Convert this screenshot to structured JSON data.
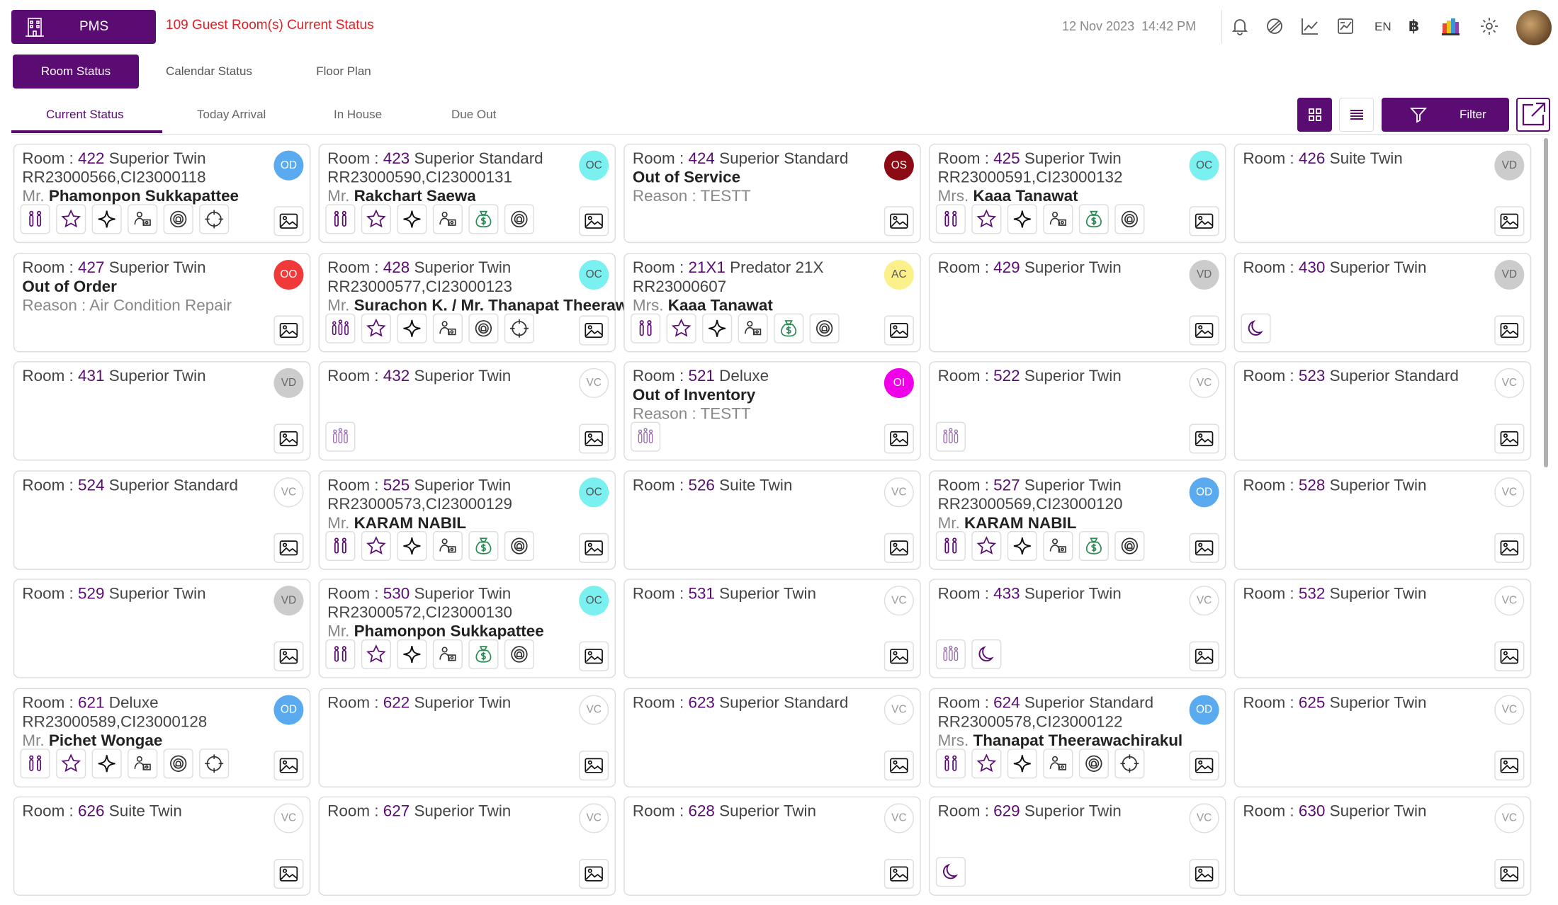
{
  "header": {
    "app_label": "PMS",
    "title": "109 Guest Room(s) Current Status",
    "date": "12 Nov 2023",
    "time": "14:42 PM",
    "language": "EN",
    "currency_symbol": "฿"
  },
  "main_tabs": [
    "Room Status",
    "Calendar Status",
    "Floor Plan"
  ],
  "sub_tabs": [
    "Current Status",
    "Today Arrival",
    "In House",
    "Due Out"
  ],
  "filter_label": "Filter",
  "colors": {
    "brand": "#5a0c72",
    "title_red": "#e31e24",
    "OD": "#5aaaf0",
    "OC": "#7af0f0",
    "OS": "#8b0a14",
    "OO": "#f03a3a",
    "AC": "#fbf08a",
    "VD": "#cccccc",
    "OI": "#f000e8",
    "VC": "#ffffff"
  },
  "rooms": [
    {
      "no": "422",
      "type": "Superior Twin",
      "status": "OD",
      "res": "RR23000566,CI23000118",
      "title": "Mr.",
      "guest": "Phamonpon Sukkapattee",
      "icons": [
        "guests",
        "star",
        "sparkle",
        "housekeeping",
        "dnd",
        "target"
      ]
    },
    {
      "no": "423",
      "type": "Superior Standard",
      "status": "OC",
      "res": "RR23000590,CI23000131",
      "title": "Mr.",
      "guest": "Rakchart Saewa",
      "icons": [
        "guests",
        "star",
        "sparkle",
        "housekeeping",
        "money",
        "dnd"
      ]
    },
    {
      "no": "424",
      "type": "Superior Standard",
      "status": "OS",
      "note": "Out of Service",
      "reason": "Reason : TESTT",
      "icons": []
    },
    {
      "no": "425",
      "type": "Superior Twin",
      "status": "OC",
      "res": "RR23000591,CI23000132",
      "title": "Mrs.",
      "guest": "Kaaa Tanawat",
      "icons": [
        "guests",
        "star",
        "sparkle",
        "housekeeping",
        "money",
        "dnd"
      ]
    },
    {
      "no": "426",
      "type": "Suite Twin",
      "status": "VD",
      "icons": []
    },
    {
      "no": "427",
      "type": "Superior Twin",
      "status": "OO",
      "note": "Out of Order",
      "reason": "Reason : Air Condition Repair",
      "icons": []
    },
    {
      "no": "428",
      "type": "Superior Twin",
      "status": "OC",
      "res": "RR23000577,CI23000123",
      "title": "Mr.",
      "guest": "Surachon K. / Mr. Thanapat Theerawach...",
      "icons": [
        "family",
        "star",
        "sparkle",
        "housekeeping",
        "dnd",
        "target"
      ]
    },
    {
      "no": "21X1",
      "type": "Predator 21X",
      "status": "AC",
      "res": "RR23000607",
      "title": "Mrs.",
      "guest": "Kaaa Tanawat",
      "icons": [
        "guests",
        "star",
        "sparkle",
        "housekeeping",
        "money",
        "dnd"
      ]
    },
    {
      "no": "429",
      "type": "Superior Twin",
      "status": "VD",
      "icons": []
    },
    {
      "no": "430",
      "type": "Superior Twin",
      "status": "VD",
      "icons": [
        "moon"
      ]
    },
    {
      "no": "431",
      "type": "Superior Twin",
      "status": "VD",
      "icons": []
    },
    {
      "no": "432",
      "type": "Superior Twin",
      "status": "VC",
      "icons": [
        "family-light"
      ]
    },
    {
      "no": "521",
      "type": "Deluxe",
      "status": "OI",
      "note": "Out of Inventory",
      "reason": "Reason : TESTT",
      "icons": [
        "family-light"
      ]
    },
    {
      "no": "522",
      "type": "Superior Twin",
      "status": "VC",
      "icons": [
        "family-light"
      ]
    },
    {
      "no": "523",
      "type": "Superior Standard",
      "status": "VC",
      "icons": []
    },
    {
      "no": "524",
      "type": "Superior Standard",
      "status": "VC",
      "icons": []
    },
    {
      "no": "525",
      "type": "Superior Twin",
      "status": "OC",
      "res": "RR23000573,CI23000129",
      "title": "Mr.",
      "guest": "KARAM NABIL",
      "icons": [
        "guests",
        "star",
        "sparkle",
        "housekeeping",
        "money",
        "dnd"
      ]
    },
    {
      "no": "526",
      "type": "Suite Twin",
      "status": "VC",
      "icons": []
    },
    {
      "no": "527",
      "type": "Superior Twin",
      "status": "OD",
      "res": "RR23000569,CI23000120",
      "title": "Mr.",
      "guest": "KARAM NABIL",
      "icons": [
        "guests",
        "star",
        "sparkle",
        "housekeeping",
        "money",
        "dnd"
      ]
    },
    {
      "no": "528",
      "type": "Superior Twin",
      "status": "VC",
      "icons": []
    },
    {
      "no": "529",
      "type": "Superior Twin",
      "status": "VD",
      "icons": []
    },
    {
      "no": "530",
      "type": "Superior Twin",
      "status": "OC",
      "res": "RR23000572,CI23000130",
      "title": "Mr.",
      "guest": "Phamonpon Sukkapattee",
      "icons": [
        "guests",
        "star",
        "sparkle",
        "housekeeping",
        "money",
        "dnd"
      ]
    },
    {
      "no": "531",
      "type": "Superior Twin",
      "status": "VC",
      "icons": []
    },
    {
      "no": "433",
      "type": "Superior Twin",
      "status": "VC",
      "icons": [
        "family-light",
        "moon"
      ]
    },
    {
      "no": "532",
      "type": "Superior Twin",
      "status": "VC",
      "icons": []
    },
    {
      "no": "621",
      "type": "Deluxe",
      "status": "OD",
      "res": "RR23000589,CI23000128",
      "title": "Mr.",
      "guest": "Pichet Wongae",
      "icons": [
        "guests",
        "star",
        "sparkle",
        "housekeeping",
        "dnd",
        "target"
      ]
    },
    {
      "no": "622",
      "type": "Superior Twin",
      "status": "VC",
      "icons": []
    },
    {
      "no": "623",
      "type": "Superior Standard",
      "status": "VC",
      "icons": []
    },
    {
      "no": "624",
      "type": "Superior Standard",
      "status": "OD",
      "res": "RR23000578,CI23000122",
      "title": "Mrs.",
      "guest": "Thanapat Theerawachirakul",
      "icons": [
        "guests",
        "star",
        "sparkle",
        "housekeeping",
        "dnd",
        "target"
      ]
    },
    {
      "no": "625",
      "type": "Superior Twin",
      "status": "VC",
      "icons": []
    },
    {
      "no": "626",
      "type": "Suite Twin",
      "status": "VC",
      "icons": []
    },
    {
      "no": "627",
      "type": "Superior Twin",
      "status": "VC",
      "icons": []
    },
    {
      "no": "628",
      "type": "Superior Twin",
      "status": "VC",
      "icons": []
    },
    {
      "no": "629",
      "type": "Superior Twin",
      "status": "VC",
      "icons": [
        "moon"
      ]
    },
    {
      "no": "630",
      "type": "Superior Twin",
      "status": "VC",
      "icons": []
    }
  ]
}
